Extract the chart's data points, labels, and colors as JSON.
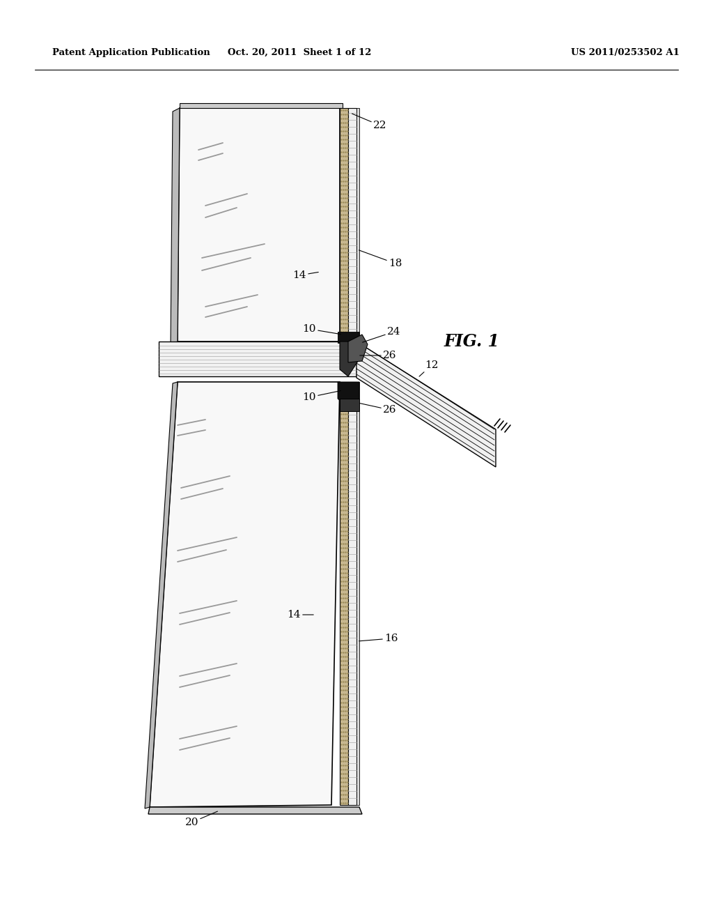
{
  "bg_color": "#ffffff",
  "header_left": "Patent Application Publication",
  "header_center": "Oct. 20, 2011  Sheet 1 of 12",
  "header_right": "US 2011/0253502 A1",
  "fig_label": "FIG. 1",
  "panel_fc": "#f8f8f8",
  "strip_fc": "#c8b890",
  "rail_fc": "#e8e8e8",
  "dark_fc": "#1a1a1a",
  "lc": "#000000",
  "shade_lc": "#888888"
}
